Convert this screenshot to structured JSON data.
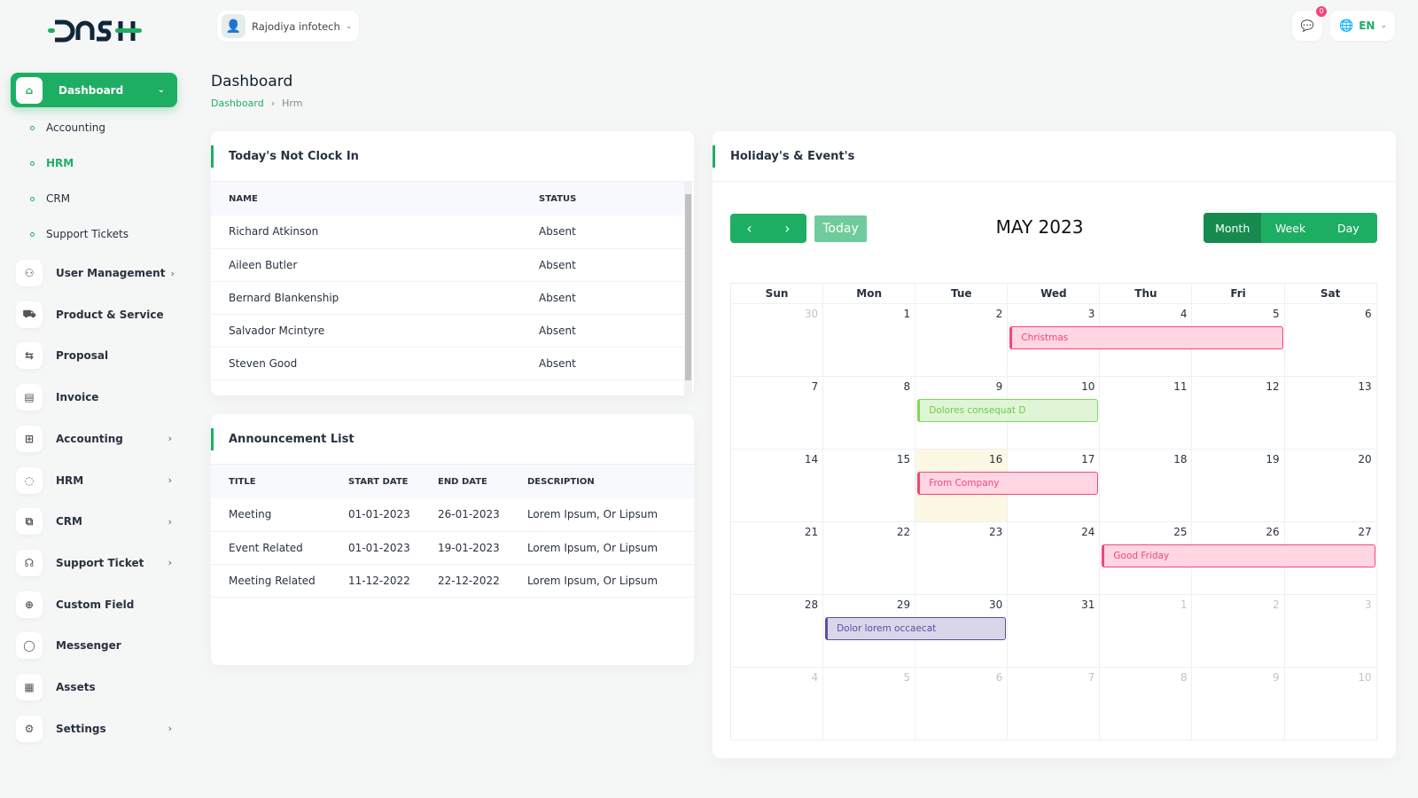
{
  "brand": {
    "logo_text": "DASH"
  },
  "header": {
    "company": "Rajodiya infotech",
    "notif_count": "0",
    "language": "EN"
  },
  "sidebar": {
    "active": {
      "label": "Dashboard",
      "icon": "home-icon"
    },
    "sub_items": [
      {
        "label": "Accounting"
      },
      {
        "label": "HRM",
        "active": true
      },
      {
        "label": "CRM"
      },
      {
        "label": "Support Tickets"
      }
    ],
    "items": [
      {
        "label": "User Management",
        "icon": "users-icon",
        "chevron": true
      },
      {
        "label": "Product & Service",
        "icon": "cart-icon",
        "chevron": false
      },
      {
        "label": "Proposal",
        "icon": "proposal-icon",
        "chevron": false
      },
      {
        "label": "Invoice",
        "icon": "file-icon",
        "chevron": false
      },
      {
        "label": "Accounting",
        "icon": "grid-plus-icon",
        "chevron": true
      },
      {
        "label": "HRM",
        "icon": "hrm-icon",
        "chevron": true
      },
      {
        "label": "CRM",
        "icon": "crm-icon",
        "chevron": true
      },
      {
        "label": "Support Ticket",
        "icon": "headphones-icon",
        "chevron": true
      },
      {
        "label": "Custom Field",
        "icon": "plus-circle-icon",
        "chevron": false
      },
      {
        "label": "Messenger",
        "icon": "chat-icon",
        "chevron": false
      },
      {
        "label": "Assets",
        "icon": "calculator-icon",
        "chevron": false
      },
      {
        "label": "Settings",
        "icon": "gear-icon",
        "chevron": true
      }
    ]
  },
  "page": {
    "title": "Dashboard",
    "breadcrumb": [
      "Dashboard",
      "Hrm"
    ]
  },
  "clock_in": {
    "title": "Today's Not Clock In",
    "columns": [
      "NAME",
      "STATUS"
    ],
    "rows": [
      [
        "Richard Atkinson",
        "Absent"
      ],
      [
        "Aileen Butler",
        "Absent"
      ],
      [
        "Bernard Blankenship",
        "Absent"
      ],
      [
        "Salvador Mcintyre",
        "Absent"
      ],
      [
        "Steven Good",
        "Absent"
      ]
    ]
  },
  "announcements": {
    "title": "Announcement List",
    "columns": [
      "TITLE",
      "START DATE",
      "END DATE",
      "DESCRIPTION"
    ],
    "rows": [
      [
        "Meeting",
        "01-01-2023",
        "26-01-2023",
        "Lorem Ipsum, Or Lipsum"
      ],
      [
        "Event Related",
        "01-01-2023",
        "19-01-2023",
        "Lorem Ipsum, Or Lipsum"
      ],
      [
        "Meeting Related",
        "11-12-2022",
        "22-12-2022",
        "Lorem Ipsum, Or Lipsum"
      ]
    ]
  },
  "calendar": {
    "title": "Holiday's & Event's",
    "month_title": "MAY 2023",
    "today_label": "Today",
    "views": [
      "Month",
      "Week",
      "Day"
    ],
    "active_view": "Month",
    "weekdays": [
      "Sun",
      "Mon",
      "Tue",
      "Wed",
      "Thu",
      "Fri",
      "Sat"
    ],
    "weeks": [
      [
        30,
        1,
        2,
        3,
        4,
        5,
        6
      ],
      [
        7,
        8,
        9,
        10,
        11,
        12,
        13
      ],
      [
        14,
        15,
        16,
        17,
        18,
        19,
        20
      ],
      [
        21,
        22,
        23,
        24,
        25,
        26,
        27
      ],
      [
        28,
        29,
        30,
        31,
        1,
        2,
        3
      ],
      [
        4,
        5,
        6,
        7,
        8,
        9,
        10
      ]
    ],
    "today": 16,
    "events": [
      {
        "title": "Christmas",
        "week": 0,
        "start_day": 3,
        "end_day": 5,
        "bg": "#ffd6e2",
        "border": "#f4457a",
        "color": "#f4457a"
      },
      {
        "title": "Dolores consequat D",
        "week": 1,
        "start_day": 2,
        "end_day": 3,
        "bg": "#dff5d6",
        "border": "#7ed957",
        "color": "#6ecb4a"
      },
      {
        "title": "From Company",
        "week": 2,
        "start_day": 2,
        "end_day": 3,
        "bg": "#ffd6e2",
        "border": "#f4457a",
        "color": "#f4457a"
      },
      {
        "title": "Good Friday",
        "week": 3,
        "start_day": 4,
        "end_day": 6,
        "bg": "#ffd6e2",
        "border": "#f4457a",
        "color": "#f4457a"
      },
      {
        "title": "Dolor lorem occaecat",
        "week": 4,
        "start_day": 1,
        "end_day": 2,
        "bg": "#d9d6ea",
        "border": "#5c4ea3",
        "color": "#5c4ea3"
      }
    ]
  },
  "colors": {
    "accent": "#1eae63",
    "accent_dark": "#168a4f",
    "today_bg": "#fcf8e3"
  }
}
